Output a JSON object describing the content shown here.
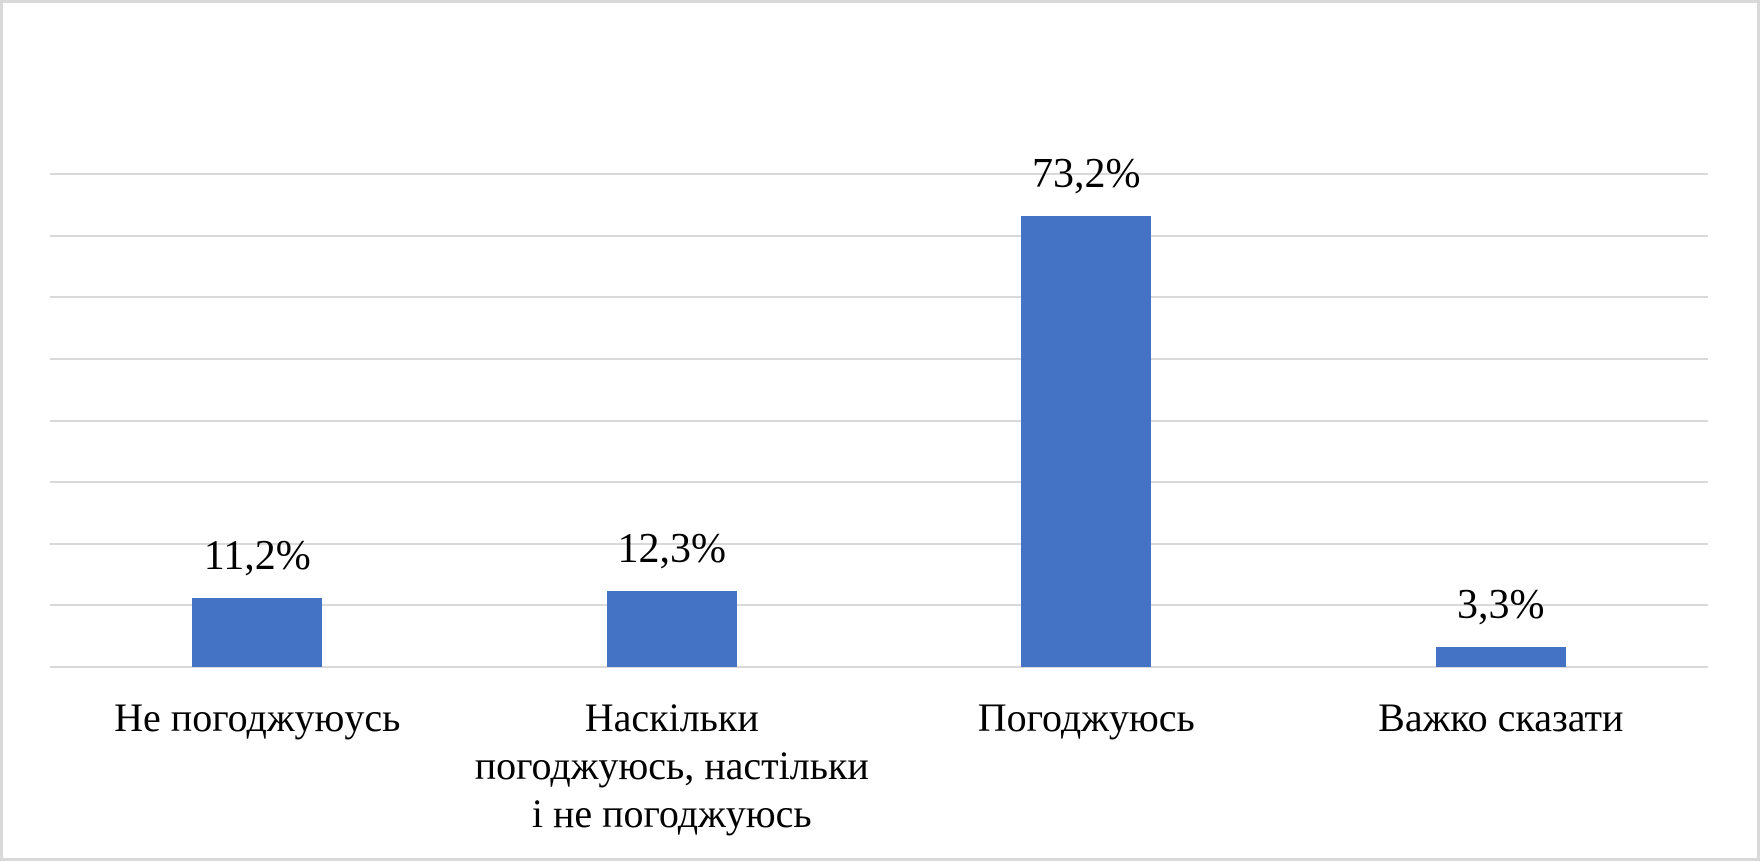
{
  "figure": {
    "background": "#FFFFFF",
    "border_color": "#D9D9D9"
  },
  "chart_data": {
    "type": "bar",
    "title": "",
    "xlabel": "",
    "ylabel": "",
    "categories": [
      "Не погоджуюусь",
      "Наскільки погоджуюсь, настільки і не погоджуюсь",
      "Погоджуюсь",
      "Важко сказати"
    ],
    "category_lines": [
      [
        "Не погоджуюусь"
      ],
      [
        "Наскільки",
        "погоджуюсь, настільки",
        "і не погоджуюсь"
      ],
      [
        "Погоджуюсь"
      ],
      [
        "Важко сказати"
      ]
    ],
    "values": [
      11.2,
      12.3,
      73.2,
      3.3
    ],
    "value_labels": [
      "11,2%",
      "12,3%",
      "73,2%",
      "3,3%"
    ],
    "ylim": [
      0,
      80
    ],
    "grid_step": 10,
    "grid": true,
    "legend": false,
    "y_tick_labels_visible": false,
    "bar_color": "#4472C4",
    "gridline_color": "#D9D9D9",
    "text_color": "#000000"
  }
}
